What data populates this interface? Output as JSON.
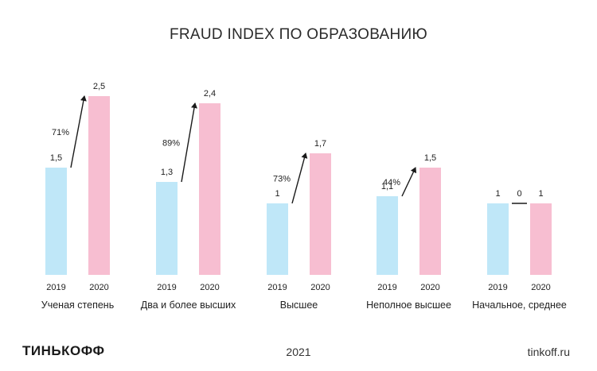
{
  "title": "FRAUD INDEX ПО ОБРАЗОВАНИЮ",
  "footer": {
    "brand": "ТИНЬКОФФ",
    "year": "2021",
    "site": "tinkoff.ru"
  },
  "colors": {
    "bar_2019": "#bfe7f8",
    "bar_2020": "#f7bed1",
    "text": "#222222",
    "arrow": "#1a1a1a"
  },
  "chart_data": {
    "type": "bar",
    "title": "FRAUD INDEX ПО ОБРАЗОВАНИЮ",
    "series_labels": [
      "2019",
      "2020"
    ],
    "groups": [
      {
        "category": "Ученая степень",
        "v2019": 1.5,
        "v2020": 2.5,
        "label2019": "1,5",
        "label2020": "2,5",
        "change": "71%"
      },
      {
        "category": "Два и более высших",
        "v2019": 1.3,
        "v2020": 2.4,
        "label2019": "1,3",
        "label2020": "2,4",
        "change": "89%"
      },
      {
        "category": "Высшее",
        "v2019": 1.0,
        "v2020": 1.7,
        "label2019": "1",
        "label2020": "1,7",
        "change": "73%"
      },
      {
        "category": "Неполное высшее",
        "v2019": 1.1,
        "v2020": 1.5,
        "label2019": "1,1",
        "label2020": "1,5",
        "change": "44%"
      },
      {
        "category": "Начальное, среднее",
        "v2019": 1.0,
        "v2020": 1.0,
        "label2019": "1",
        "label2020": "1",
        "change": "0"
      }
    ],
    "ylim": [
      0,
      2.5
    ],
    "grid": false,
    "legend": "none"
  }
}
